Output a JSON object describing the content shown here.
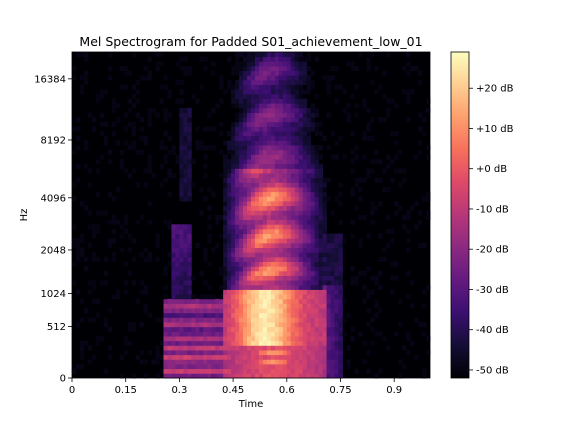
{
  "chart_data": {
    "type": "heatmap",
    "title": "Mel Spectrogram for Padded S01_achievement_low_01",
    "xlabel": "Time",
    "ylabel": "Hz",
    "x_ticks": [
      "0",
      "0.15",
      "0.3",
      "0.45",
      "0.6",
      "0.75",
      "0.9"
    ],
    "x_tick_values": [
      0,
      0.15,
      0.3,
      0.45,
      0.6,
      0.75,
      0.9
    ],
    "xlim": [
      0,
      1.0
    ],
    "y_ticks": [
      "0",
      "512",
      "1024",
      "2048",
      "4096",
      "8192",
      "16384"
    ],
    "y_scale": "mel",
    "colormap": "magma",
    "colorbar": {
      "labels": [
        "+20 dB",
        "+10 dB",
        "+0 dB",
        "-10 dB",
        "-20 dB",
        "-30 dB",
        "-40 dB",
        "-50 dB"
      ],
      "values": [
        20,
        10,
        0,
        -10,
        -20,
        -30,
        -40,
        -50
      ],
      "range": [
        -52,
        29
      ]
    },
    "content": {
      "voiced_start_s": 0.26,
      "voiced_end_s": 0.75,
      "strong_vowel_start_s": 0.43,
      "strong_vowel_end_s": 0.7,
      "peak_time_s": 0.52,
      "peak_hz": 650,
      "peak_db": 28,
      "floor_db": -52
    }
  }
}
